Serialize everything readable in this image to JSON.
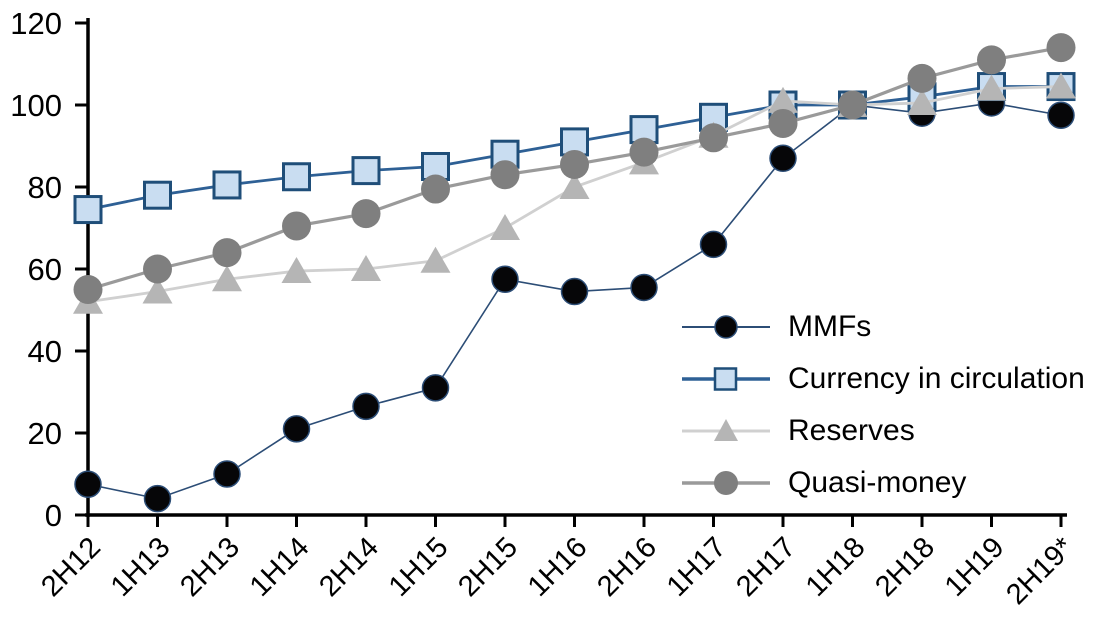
{
  "chart_data": {
    "type": "line",
    "title": "",
    "xlabel": "",
    "ylabel": "",
    "ylim": [
      0,
      120
    ],
    "yticks": [
      0,
      20,
      40,
      60,
      80,
      100,
      120
    ],
    "grid": false,
    "legend_position": "inside-right",
    "categories": [
      "2H12",
      "1H13",
      "2H13",
      "1H14",
      "2H14",
      "1H15",
      "2H15",
      "1H16",
      "2H16",
      "1H17",
      "2H17",
      "1H18",
      "2H18",
      "1H19",
      "2H19*"
    ],
    "series": [
      {
        "name": "MMFs",
        "marker": "circle",
        "color": "#060608",
        "line_color": "#2c4d76",
        "values": [
          7.5,
          4,
          10,
          21,
          26.5,
          31,
          57.5,
          54.5,
          55.5,
          66,
          87,
          100,
          98,
          100.5,
          97.5
        ]
      },
      {
        "name": "Currency in circulation",
        "marker": "square",
        "color": "#c9ddf1",
        "line_color": "#2e6095",
        "border_color": "#1f4e79",
        "values": [
          74.5,
          78,
          80.5,
          82.5,
          84,
          85,
          88,
          91,
          94,
          97,
          100,
          100,
          102,
          104.5,
          104.5
        ]
      },
      {
        "name": "Reserves",
        "marker": "triangle",
        "color": "#b5b5b5",
        "line_color": "#d0d0d0",
        "values": [
          52,
          54.5,
          57.5,
          59.5,
          60,
          62,
          70,
          80,
          86,
          92.5,
          101,
          100,
          100.5,
          104,
          104.5
        ]
      },
      {
        "name": "Quasi-money",
        "marker": "circle",
        "color": "#7f7f7f",
        "line_color": "#9a9a9a",
        "values": [
          55,
          60,
          64,
          70.5,
          73.5,
          79.5,
          83,
          85.5,
          88.5,
          92,
          95.5,
          100,
          106.5,
          111,
          114
        ]
      }
    ],
    "axis_color": "#000000",
    "tick_label_color": "#000000"
  }
}
